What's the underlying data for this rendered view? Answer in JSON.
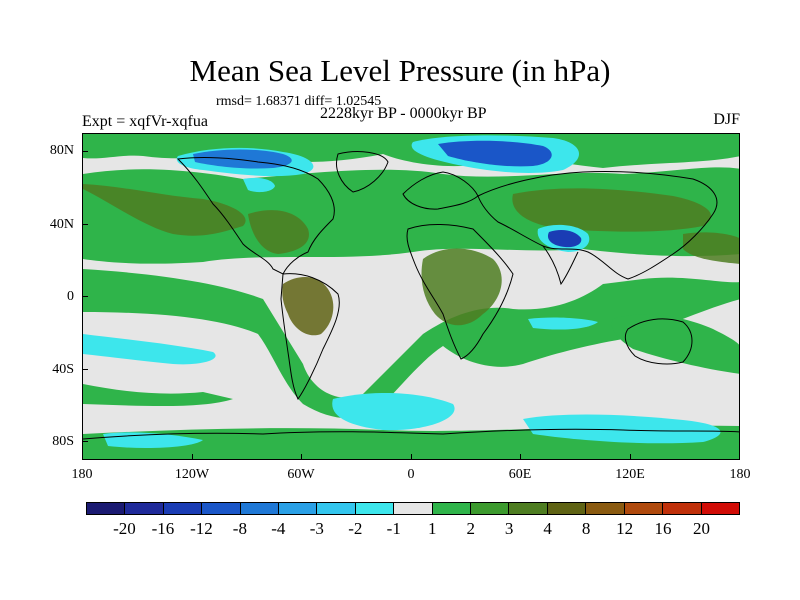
{
  "title": "Mean Sea Level Pressure (in hPa)",
  "stats_line": "rmsd= 1.68371 diff= 1.02545",
  "period_line": "2228kyr BP - 0000kyr BP",
  "experiment_line": "Expt = xqfVr-xqfua",
  "season_label": "DJF",
  "lat_labels": [
    "80N",
    "40N",
    "0",
    "40S",
    "80S"
  ],
  "lon_labels": [
    "180",
    "120W",
    "60W",
    "0",
    "60E",
    "120E",
    "180"
  ],
  "colorbar": {
    "labels": [
      "-20",
      "-16",
      "-12",
      "-8",
      "-4",
      "-3",
      "-2",
      "-1",
      "1",
      "2",
      "3",
      "4",
      "8",
      "12",
      "16",
      "20"
    ],
    "colors": [
      "#1b1a72",
      "#1f2a9a",
      "#1a3cb4",
      "#1a56c8",
      "#1f78d6",
      "#2aa0e6",
      "#33c6ee",
      "#3de6ec",
      "#e6e6e6",
      "#2fb44a",
      "#3c9a2e",
      "#4e7d21",
      "#5f6314",
      "#8a5a10",
      "#b04a0d",
      "#c0300a",
      "#d10c06"
    ]
  },
  "colors": {
    "ocean_background": "#e6e6e6",
    "green_light": "#2fb44a",
    "green_dark": "#4e7d21",
    "olive_brown": "#6a6a1e",
    "cyan": "#3de6ec",
    "blue_light": "#1f78d6",
    "blue_dark": "#1a3cb4"
  }
}
